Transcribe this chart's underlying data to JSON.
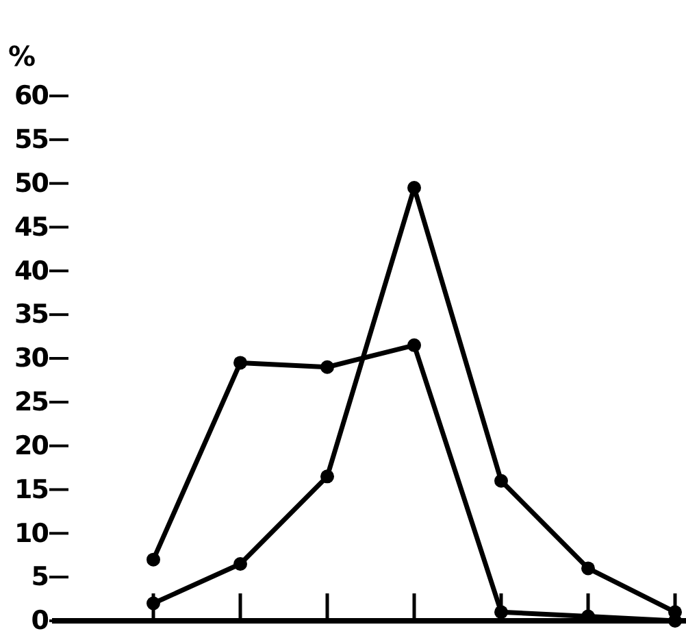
{
  "chart_data": {
    "type": "line",
    "ylabel": "%",
    "categories": [
      null,
      null,
      null,
      null,
      null,
      null,
      null
    ],
    "series": [
      {
        "color": "#000000",
        "values": [
          2,
          6.5,
          16.5,
          49.5,
          16,
          6,
          1
        ]
      },
      {
        "color": "#000000",
        "values": [
          7,
          29.5,
          29,
          31.5,
          1,
          0.5,
          0
        ]
      }
    ],
    "ylim": [
      0,
      60
    ],
    "yticks": [
      0,
      5,
      10,
      15,
      20,
      25,
      30,
      35,
      40,
      45,
      50,
      55,
      60
    ],
    "marker": "circle",
    "line_style": "solid"
  }
}
